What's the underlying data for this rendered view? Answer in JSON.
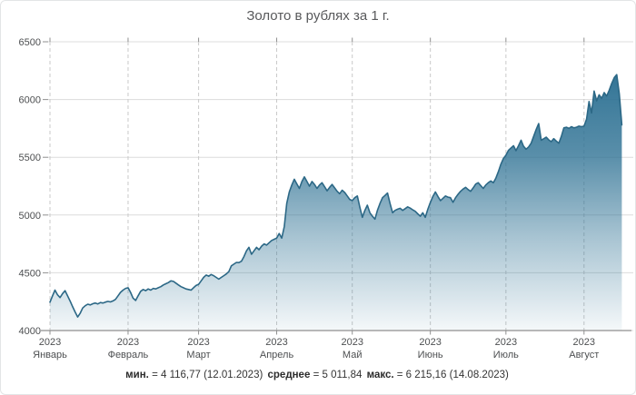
{
  "title": "Золото в рублях за 1 г.",
  "footer": {
    "min_label": "мин.",
    "min_value": "= 4 116,77 (12.01.2023)",
    "avg_label": "среднее",
    "avg_value": "= 5 011,84",
    "max_label": "макс.",
    "max_value": "= 6 215,16 (14.08.2023)"
  },
  "chart_data": {
    "type": "area",
    "title": "Золото в рублях за 1 г.",
    "ylabel": "",
    "xlabel": "",
    "ylim": [
      4000,
      6500
    ],
    "y_ticks": [
      4000,
      4500,
      5000,
      5500,
      6000,
      6500
    ],
    "x_tick_labels": [
      {
        "year": "2023",
        "month": "Январь"
      },
      {
        "year": "2023",
        "month": "Февраль"
      },
      {
        "year": "2023",
        "month": "Март"
      },
      {
        "year": "2023",
        "month": "Апрель"
      },
      {
        "year": "2023",
        "month": "Май"
      },
      {
        "year": "2023",
        "month": "Июнь"
      },
      {
        "year": "2023",
        "month": "Июль"
      },
      {
        "year": "2023",
        "month": "Август"
      }
    ],
    "grid": {
      "horizontal": "solid",
      "vertical": "dashed"
    },
    "legend_position": "none",
    "x_start_date": "2023-01-01",
    "x_end_date": "2023-08-16",
    "sampling": "daily",
    "stats": {
      "min": 4116.77,
      "min_date": "12.01.2023",
      "avg": 5011.84,
      "max": 6215.16,
      "max_date": "14.08.2023"
    },
    "colors": {
      "line": "#2c6886",
      "fill_top": "#2f7294",
      "fill_bottom": "#f3f7fa",
      "grid_h": "#dcdcdc",
      "grid_v": "#c9c9c9",
      "axis": "#8f8f8f",
      "tick_label": "#4d4f51"
    },
    "series": [
      {
        "values": [
          4245,
          4300,
          4350,
          4310,
          4285,
          4320,
          4345,
          4300,
          4255,
          4205,
          4160,
          4117,
          4150,
          4195,
          4215,
          4228,
          4222,
          4232,
          4238,
          4230,
          4242,
          4238,
          4246,
          4252,
          4248,
          4256,
          4270,
          4300,
          4330,
          4350,
          4365,
          4370,
          4330,
          4280,
          4260,
          4300,
          4340,
          4355,
          4345,
          4360,
          4350,
          4365,
          4360,
          4370,
          4380,
          4395,
          4405,
          4415,
          4430,
          4425,
          4410,
          4395,
          4380,
          4370,
          4360,
          4355,
          4350,
          4370,
          4390,
          4400,
          4430,
          4460,
          4480,
          4470,
          4485,
          4475,
          4460,
          4445,
          4460,
          4475,
          4490,
          4510,
          4560,
          4575,
          4590,
          4588,
          4600,
          4640,
          4690,
          4720,
          4660,
          4690,
          4720,
          4700,
          4730,
          4750,
          4740,
          4760,
          4780,
          4790,
          4800,
          4840,
          4800,
          4900,
          5100,
          5200,
          5260,
          5310,
          5270,
          5230,
          5290,
          5330,
          5290,
          5250,
          5290,
          5265,
          5230,
          5260,
          5280,
          5245,
          5210,
          5240,
          5265,
          5235,
          5205,
          5185,
          5215,
          5195,
          5165,
          5135,
          5125,
          5150,
          5165,
          5070,
          4980,
          5040,
          5085,
          5020,
          4990,
          4965,
          5040,
          5100,
          5150,
          5170,
          5190,
          5100,
          5020,
          5040,
          5050,
          5058,
          5040,
          5055,
          5071,
          5060,
          5045,
          5032,
          5010,
          4990,
          5020,
          4980,
          5050,
          5110,
          5160,
          5200,
          5160,
          5125,
          5145,
          5165,
          5155,
          5150,
          5110,
          5150,
          5180,
          5205,
          5225,
          5240,
          5220,
          5205,
          5235,
          5268,
          5280,
          5255,
          5230,
          5260,
          5280,
          5295,
          5280,
          5320,
          5375,
          5440,
          5490,
          5517,
          5560,
          5580,
          5600,
          5557,
          5600,
          5648,
          5596,
          5570,
          5590,
          5622,
          5680,
          5740,
          5792,
          5648,
          5660,
          5674,
          5650,
          5635,
          5661,
          5640,
          5622,
          5680,
          5755,
          5760,
          5750,
          5765,
          5755,
          5760,
          5770,
          5765,
          5770,
          5830,
          5983,
          5884,
          6073,
          5989,
          6041,
          6010,
          6060,
          6030,
          6080,
          6140,
          6190,
          6215.16,
          6050,
          5780
        ]
      }
    ]
  }
}
